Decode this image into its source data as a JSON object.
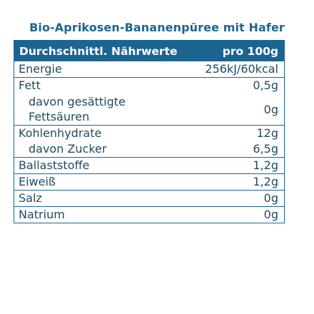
{
  "title": "Bio-Aprikosen-Bananenpüree mit Hafer",
  "header": {
    "label": "Durchschnittl. Nährwerte",
    "value": "pro 100g"
  },
  "rows": {
    "energie": {
      "label": "Energie",
      "value": "256kJ/60kcal"
    },
    "fett": {
      "label": "Fett",
      "value": "0,5g"
    },
    "gesaettigte": {
      "label": "davon gesättigte Fettsäuren",
      "value": "0g"
    },
    "kohlenhydrate": {
      "label": "Kohlenhydrate",
      "value": "12g"
    },
    "zucker": {
      "label": "davon Zucker",
      "value": "6,5g"
    },
    "ballaststoffe": {
      "label": "Ballaststoffe",
      "value": "1,2g"
    },
    "eiweiss": {
      "label": "Eiweiß",
      "value": "1,2g"
    },
    "salz": {
      "label": "Salz",
      "value": "0g"
    },
    "natrium": {
      "label": "Natrium",
      "value": "0g"
    }
  },
  "colors": {
    "accent": "#1d6591",
    "text": "#1f4a66",
    "background": "#ffffff"
  }
}
